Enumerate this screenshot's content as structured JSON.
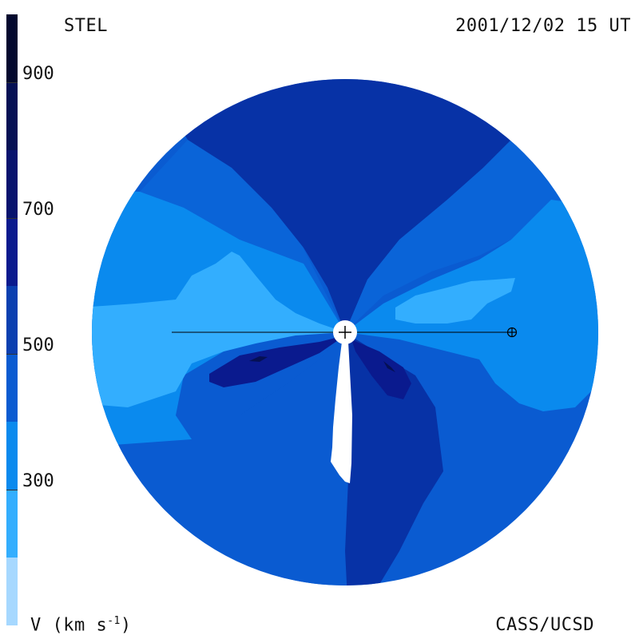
{
  "header": {
    "organization": "STEL",
    "timestamp": "2001/12/02 15 UT"
  },
  "footer": {
    "credit": "CASS/UCSD",
    "units_prefix": "V (km s",
    "units_exp": "-1",
    "units_suffix": ")"
  },
  "colorbar": {
    "ticks": [
      "900",
      "700",
      "500",
      "300"
    ],
    "tick_values": [
      900,
      700,
      500,
      300
    ],
    "range": [
      100,
      1000
    ],
    "bands_top_to_bottom": [
      "#05103f",
      "#0a1a6b",
      "#0b1e8f",
      "#0732a6",
      "#0a5bd1",
      "#0a8aee",
      "#33aefe",
      "#a6d8ff"
    ]
  },
  "map": {
    "symbols": {
      "sun": "sun-disk-icon",
      "earth": "earth-symbol-icon"
    },
    "colors": {
      "v_800_plus": "#0a1a6b",
      "v_600_700": "#0732a6",
      "v_500_600": "#0a5bd1",
      "v_400_500": "#1570e6",
      "v_300_400": "#0a8aee",
      "v_200_300": "#33aefe",
      "shadow": "#ffffff"
    }
  }
}
